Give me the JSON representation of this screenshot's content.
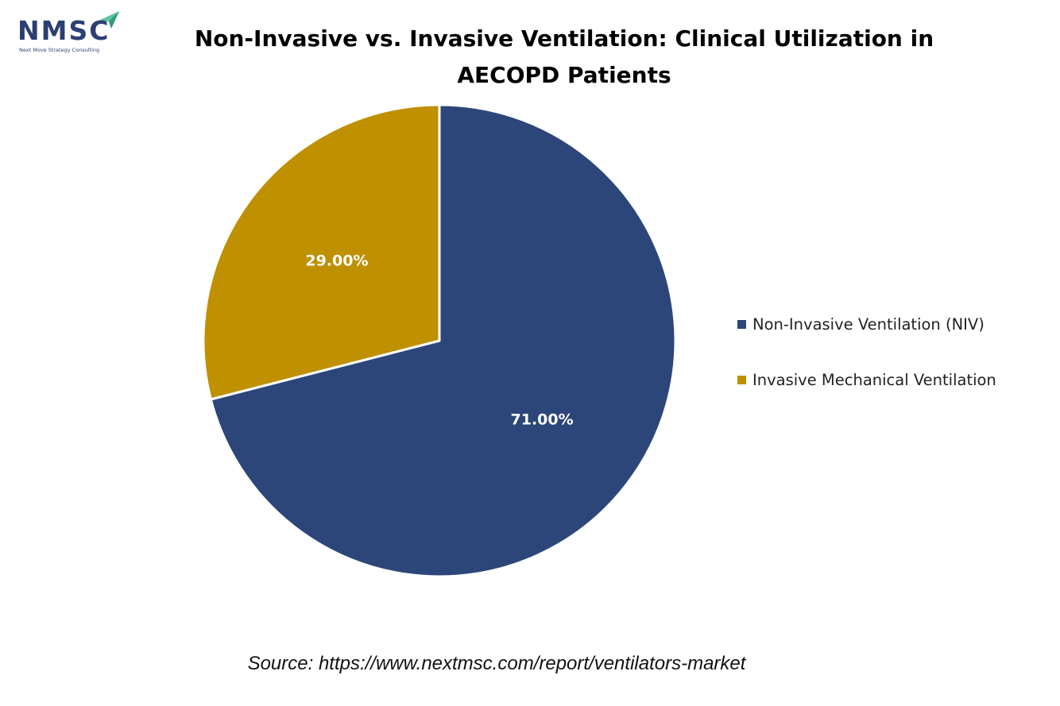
{
  "logo": {
    "name": "NMSC",
    "tagline": "Next Move Strategy Consulting",
    "color": "#2b3f72",
    "accent": "#5fc2a0"
  },
  "chart_data": {
    "type": "pie",
    "title": "Non-Invasive vs. Invasive Ventilation: Clinical Utilization in AECOPD Patients",
    "categories": [
      "Non-Invasive Ventilation (NIV)",
      "Invasive Mechanical Ventilation"
    ],
    "values": [
      71.0,
      29.0
    ],
    "labels": [
      "71.00%",
      "29.00%"
    ],
    "colors": [
      "#2c4679",
      "#bf9000"
    ],
    "legend_position": "right",
    "start_angle": "12 o'clock",
    "direction": "clockwise"
  },
  "source": "Source: https://www.nextmsc.com/report/ventilators-market"
}
